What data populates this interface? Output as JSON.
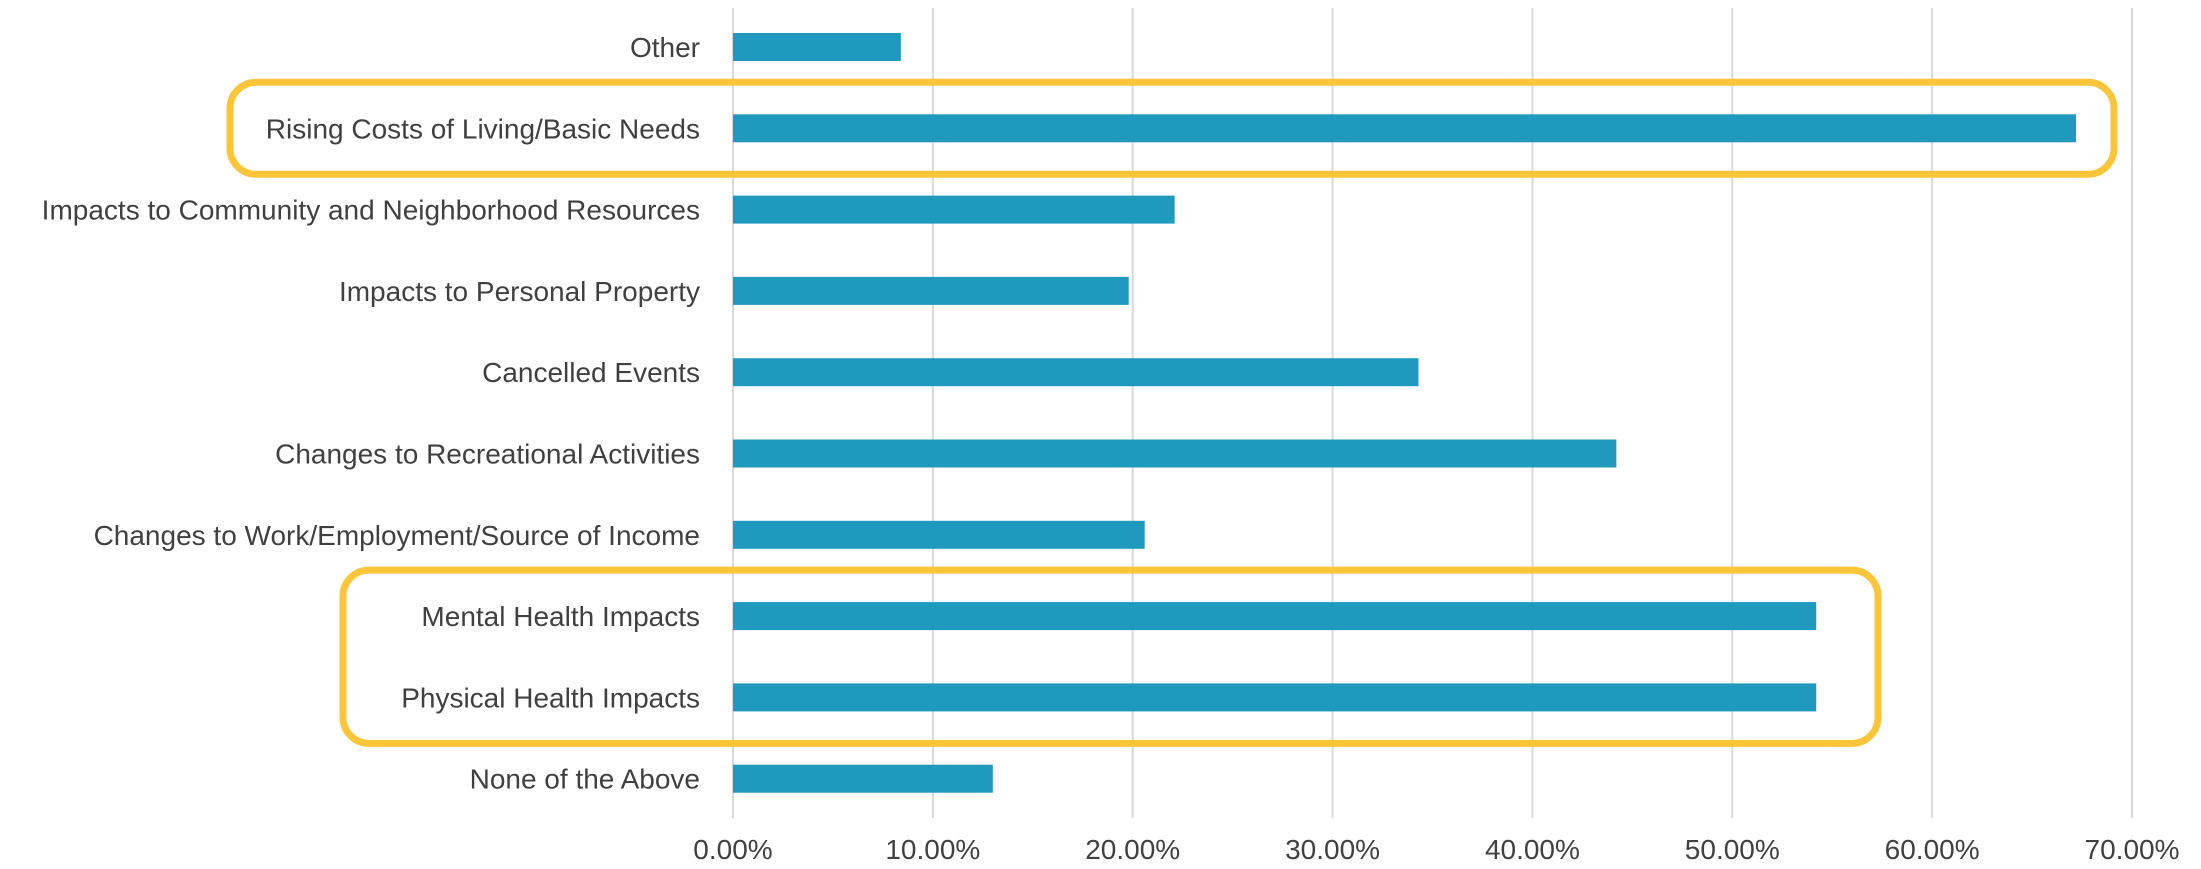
{
  "chart_data": {
    "type": "bar",
    "orientation": "horizontal",
    "categories": [
      "Other",
      "Rising Costs of Living/Basic Needs",
      "Impacts to Community and Neighborhood Resources",
      "Impacts to Personal Property",
      "Cancelled Events",
      "Changes to Recreational Activities",
      "Changes to Work/Employment/Source of Income",
      "Mental Health Impacts",
      "Physical Health Impacts",
      "None of the Above"
    ],
    "values": [
      8.4,
      67.2,
      22.1,
      19.8,
      34.3,
      44.2,
      20.6,
      54.2,
      54.2,
      13.0
    ],
    "xlim": [
      0,
      70
    ],
    "xticks": [
      0,
      10,
      20,
      30,
      40,
      50,
      60,
      70
    ],
    "xtick_labels": [
      "0.00%",
      "10.00%",
      "20.00%",
      "30.00%",
      "40.00%",
      "50.00%",
      "60.00%",
      "70.00%"
    ],
    "title": "",
    "xlabel": "",
    "ylabel": "",
    "grid": "vertical",
    "legend": "none",
    "highlighted_categories": [
      [
        "Rising Costs of Living/Basic Needs"
      ],
      [
        "Mental Health Impacts",
        "Physical Health Impacts"
      ]
    ],
    "colors": {
      "bar": "#1f99bd",
      "highlight": "#fbc53a",
      "grid": "#d9d9d9",
      "text": "#404040"
    }
  }
}
